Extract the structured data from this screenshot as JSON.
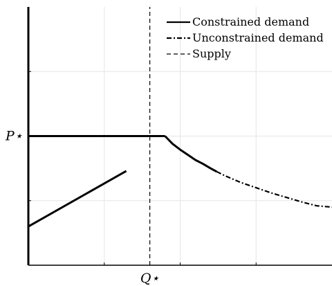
{
  "chart_data": {
    "type": "line",
    "title": "",
    "xlabel": "",
    "ylabel": "",
    "xlim": [
      0,
      4
    ],
    "ylim": [
      0,
      4
    ],
    "grid": true,
    "legend_position": "top-right",
    "x_tick_labels": [
      {
        "x": 1.6,
        "label": "Q⋆"
      }
    ],
    "y_tick_labels": [
      {
        "y": 2,
        "label": "P⋆"
      }
    ],
    "series": [
      {
        "name": "Constrained demand",
        "style": "solid",
        "color": "#000000",
        "segments": [
          [
            [
              0.0,
              0.0
            ],
            [
              0.0,
              4.0
            ]
          ],
          [
            [
              0.0,
              0.6
            ],
            [
              0.0,
              0.6
            ],
            [
              1.29,
              1.46
            ]
          ],
          [
            [
              0.0,
              2.0
            ],
            [
              1.8,
              2.0
            ]
          ],
          [
            [
              1.8,
              2.0
            ],
            [
              1.9,
              1.88
            ],
            [
              2.0,
              1.79
            ],
            [
              2.1,
              1.71
            ],
            [
              2.2,
              1.63
            ],
            [
              2.3,
              1.57
            ],
            [
              2.4,
              1.5
            ],
            [
              2.48,
              1.45
            ]
          ]
        ]
      },
      {
        "name": "Unconstrained demand",
        "style": "dashdot",
        "color": "#000000",
        "segments": [
          [
            [
              2.48,
              1.45
            ],
            [
              2.6,
              1.38
            ],
            [
              2.8,
              1.28
            ],
            [
              3.0,
              1.2
            ],
            [
              3.2,
              1.12
            ],
            [
              3.4,
              1.05
            ],
            [
              3.6,
              0.98
            ],
            [
              3.8,
              0.92
            ],
            [
              4.0,
              0.9
            ]
          ]
        ]
      },
      {
        "name": "Supply",
        "style": "dashed",
        "color": "#000000",
        "segments": [
          [
            [
              1.6,
              0.0
            ],
            [
              1.6,
              4.0
            ]
          ]
        ]
      }
    ]
  }
}
